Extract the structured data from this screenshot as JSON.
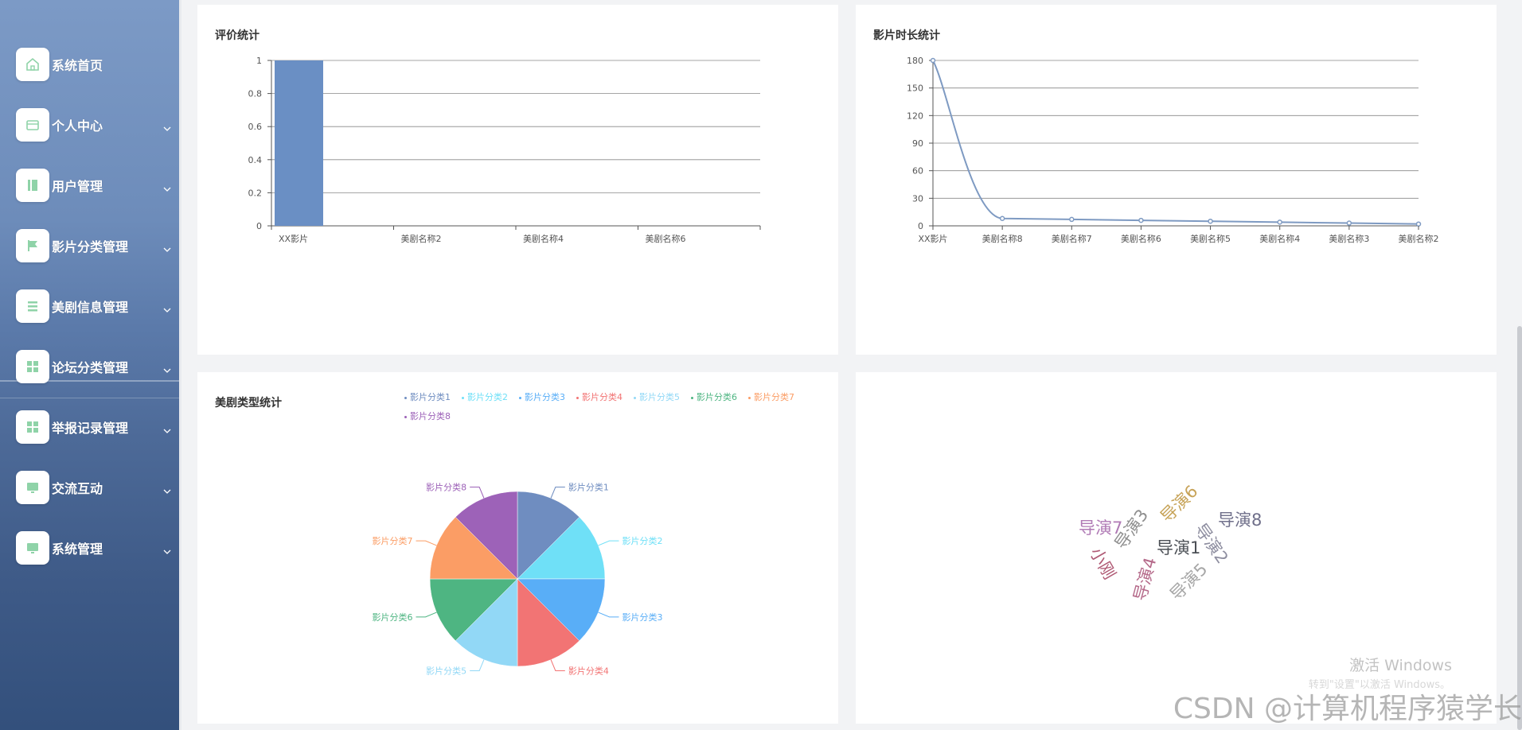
{
  "sidebar": {
    "items": [
      {
        "label": "系统首页",
        "icon": "home-icon",
        "has_sub": false
      },
      {
        "label": "个人中心",
        "icon": "wallet-icon",
        "has_sub": true
      },
      {
        "label": "用户管理",
        "icon": "book-icon",
        "has_sub": true
      },
      {
        "label": "影片分类管理",
        "icon": "flag-icon",
        "has_sub": true
      },
      {
        "label": "美剧信息管理",
        "icon": "list-icon",
        "has_sub": true
      },
      {
        "label": "论坛分类管理",
        "icon": "grid-icon",
        "has_sub": true
      },
      {
        "label": "举报记录管理",
        "icon": "grid-icon",
        "has_sub": true
      },
      {
        "label": "交流互动",
        "icon": "monitor-icon",
        "has_sub": true
      },
      {
        "label": "系统管理",
        "icon": "monitor-icon",
        "has_sub": true
      }
    ],
    "icon_color": "#8fd3a8"
  },
  "cards": {
    "rating": {
      "title": "评价统计"
    },
    "duration": {
      "title": "影片时长统计"
    },
    "genre": {
      "title": "美剧类型统计"
    },
    "director": {
      "title": ""
    }
  },
  "chart_data": [
    {
      "type": "bar",
      "title": "评价统计",
      "categories": [
        "XX影片",
        "美剧名称2",
        "美剧名称4",
        "美剧名称6"
      ],
      "values": [
        1,
        0,
        0,
        0
      ],
      "yticks": [
        "0",
        "0.2",
        "0.4",
        "0.6",
        "0.8",
        "1"
      ],
      "ylim": [
        0,
        1
      ],
      "color": "#6a8fc4",
      "grid": true
    },
    {
      "type": "line",
      "title": "影片时长统计",
      "categories": [
        "XX影片",
        "美剧名称8",
        "美剧名称7",
        "美剧名称6",
        "美剧名称5",
        "美剧名称4",
        "美剧名称3",
        "美剧名称2"
      ],
      "values": [
        180,
        8,
        7,
        6,
        5,
        4,
        3,
        2
      ],
      "yticks": [
        "0",
        "30",
        "60",
        "90",
        "120",
        "150",
        "180"
      ],
      "ylim": [
        0,
        180
      ],
      "color": "#7e9ac2",
      "smooth": true,
      "grid": true
    },
    {
      "type": "pie",
      "title": "美剧类型统计",
      "legend_placement": "top",
      "slices": [
        {
          "name": "影片分类1",
          "value": 1,
          "color": "#6f8dc0"
        },
        {
          "name": "影片分类2",
          "value": 1,
          "color": "#6fe0f7"
        },
        {
          "name": "影片分类3",
          "value": 1,
          "color": "#59aef7"
        },
        {
          "name": "影片分类4",
          "value": 1,
          "color": "#f27474"
        },
        {
          "name": "影片分类5",
          "value": 1,
          "color": "#92d8f6"
        },
        {
          "name": "影片分类6",
          "value": 1,
          "color": "#4eb582"
        },
        {
          "name": "影片分类7",
          "value": 1,
          "color": "#fb9d65"
        },
        {
          "name": "影片分类8",
          "value": 1,
          "color": "#9d62b8"
        }
      ]
    },
    {
      "type": "wordcloud",
      "words": [
        {
          "text": "导演7",
          "color": "#b07ab5"
        },
        {
          "text": "导演3",
          "color": "#8f8f8f"
        },
        {
          "text": "导演6",
          "color": "#c7a358"
        },
        {
          "text": "导演8",
          "color": "#6f6f8a"
        },
        {
          "text": "导演1",
          "color": "#4b4f55"
        },
        {
          "text": "导演2",
          "color": "#8e8ea0"
        },
        {
          "text": "小刚",
          "color": "#b05a75"
        },
        {
          "text": "导演4",
          "color": "#b56a8a"
        },
        {
          "text": "导演5",
          "color": "#a6a6a6"
        }
      ]
    }
  ],
  "watermark": {
    "activate_title": "激活 Windows",
    "activate_sub": "转到\"设置\"以激活 Windows。",
    "csdn": "CSDN @计算机程序猿学长"
  }
}
